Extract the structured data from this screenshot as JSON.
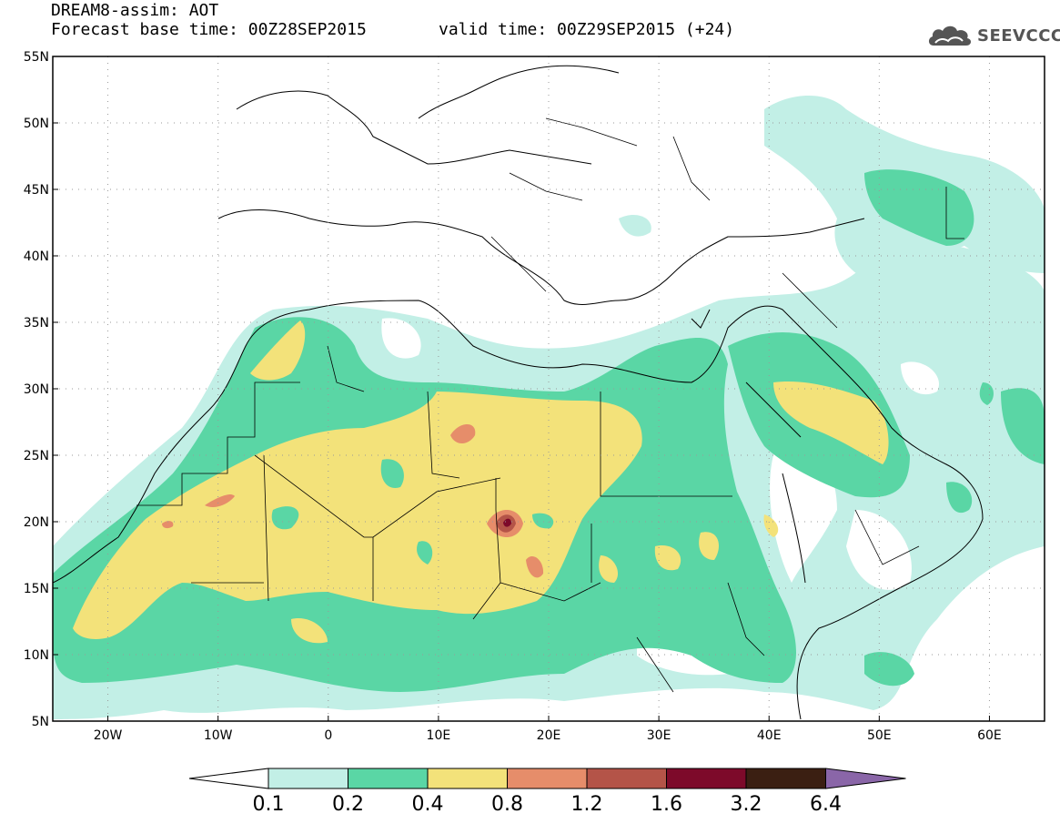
{
  "header": {
    "title_line1": "DREAM8-assim: AOT",
    "title_line2": "Forecast base time: 00Z28SEP2015",
    "valid_time": "valid time: 00Z29SEP2015 (+24)",
    "logo_text": "SEEVCCC",
    "logo_icon": "cloud-logo-icon"
  },
  "map": {
    "lat_labels": [
      "55N",
      "50N",
      "45N",
      "40N",
      "35N",
      "30N",
      "25N",
      "20N",
      "15N",
      "10N",
      "5N"
    ],
    "lon_labels": [
      "20W",
      "10W",
      "0",
      "10E",
      "20E",
      "30E",
      "40E",
      "50E",
      "60E"
    ],
    "lat_values": [
      55,
      50,
      45,
      40,
      35,
      30,
      25,
      20,
      15,
      10,
      5
    ],
    "lon_values": [
      -20,
      -10,
      0,
      10,
      20,
      30,
      40,
      50,
      60
    ],
    "extent": {
      "lon_min": -25,
      "lon_max": 65,
      "lat_min": 5,
      "lat_max": 55
    },
    "gridlines": "dotted"
  },
  "colorbar": {
    "labels": [
      "0.1",
      "0.2",
      "0.4",
      "0.8",
      "1.2",
      "1.6",
      "3.2",
      "6.4"
    ],
    "colors": [
      "#ffffff",
      "#c2efe6",
      "#5ad6a5",
      "#f3e27a",
      "#e68d6a",
      "#b45448",
      "#7d0a2a",
      "#3b1f12",
      "#8a66a8"
    ]
  }
}
